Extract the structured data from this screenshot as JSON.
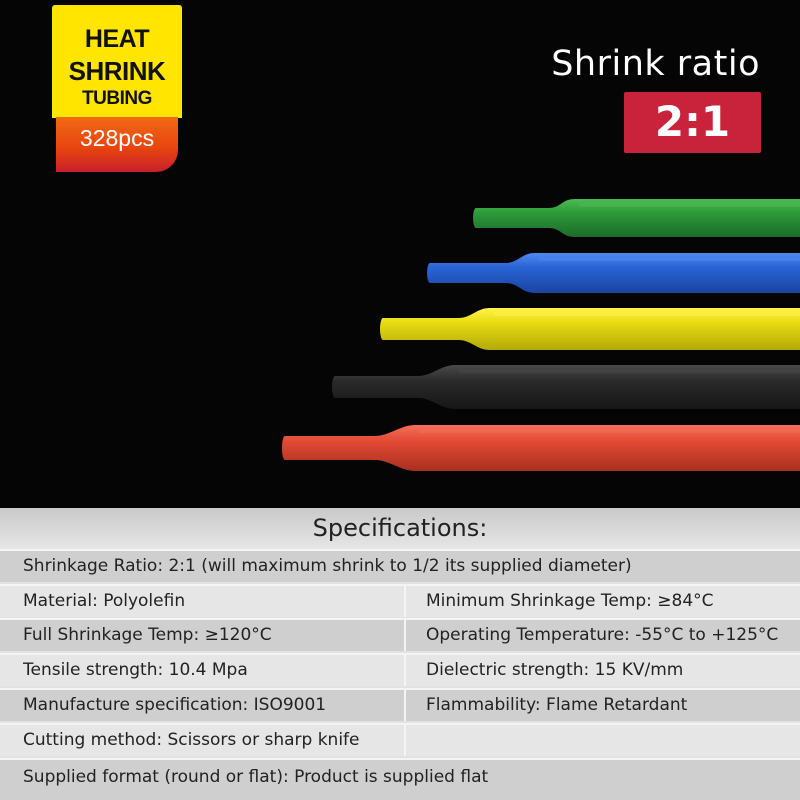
{
  "badge": {
    "line1": "HEAT",
    "line2": "SHRINK",
    "line3": "TUBING",
    "count": "328pcs"
  },
  "shrink": {
    "label": "Shrink ratio",
    "value": "2:1"
  },
  "tubes": [
    {
      "color": "#2e9b3b",
      "highlight": "#4dbb55",
      "shadow": "#1c6b28"
    },
    {
      "color": "#2a64d6",
      "highlight": "#4e8af0",
      "shadow": "#1a44a0"
    },
    {
      "color": "#e8dc12",
      "highlight": "#fff44a",
      "shadow": "#b3a808"
    },
    {
      "color": "#2b2b2b",
      "highlight": "#4a4a4a",
      "shadow": "#161616"
    },
    {
      "color": "#e34a35",
      "highlight": "#f56f5a",
      "shadow": "#a8301f"
    }
  ],
  "specs": {
    "title": "Specifications:",
    "rows": [
      {
        "full": "Shrinkage Ratio: 2:1 (will maximum shrink to 1/2 its supplied diameter)"
      },
      {
        "left": "Material: Polyolefin",
        "right": "Minimum Shrinkage Temp: ≥84°C"
      },
      {
        "left": "Full Shrinkage Temp: ≥120°C",
        "right": "Operating Temperature: -55°C to +125°C"
      },
      {
        "left": "Tensile strength: 10.4 Mpa",
        "right": "Dielectric strength: 15 KV/mm"
      },
      {
        "left": "Manufacture specification: ISO9001",
        "right": "Flammability: Flame Retardant"
      },
      {
        "left": "Cutting method: Scissors or sharp knife",
        "right": ""
      },
      {
        "full": "Supplied format (round or flat): Product is supplied flat"
      }
    ]
  }
}
